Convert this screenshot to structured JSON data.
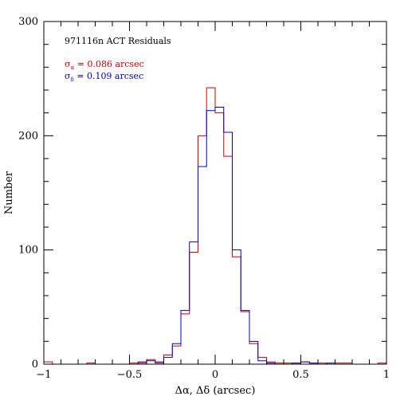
{
  "chart_data": {
    "type": "histogram",
    "title": "971116n ACT Residuals",
    "xlabel": "Δα, Δδ (arcsec)",
    "ylabel": "Number",
    "xlim": [
      -1,
      1
    ],
    "ylim": [
      0,
      300
    ],
    "x_ticks": [
      -1,
      -0.5,
      0,
      0.5,
      1
    ],
    "x_tick_labels": [
      "−1",
      "−0.5",
      "0",
      "0.5",
      "1"
    ],
    "y_ticks": [
      0,
      100,
      200,
      300
    ],
    "y_tick_labels": [
      "0",
      "100",
      "200",
      "300"
    ],
    "bin_width": 0.05,
    "bin_starts": [
      -1.0,
      -0.95,
      -0.9,
      -0.85,
      -0.8,
      -0.75,
      -0.7,
      -0.65,
      -0.6,
      -0.55,
      -0.5,
      -0.45,
      -0.4,
      -0.35,
      -0.3,
      -0.25,
      -0.2,
      -0.15,
      -0.1,
      -0.05,
      0.0,
      0.05,
      0.1,
      0.15,
      0.2,
      0.25,
      0.3,
      0.35,
      0.4,
      0.45,
      0.5,
      0.55,
      0.6,
      0.65,
      0.7,
      0.75,
      0.8,
      0.85,
      0.9,
      0.95
    ],
    "series": [
      {
        "name": "σα",
        "color": "#d00000",
        "values": [
          2,
          0,
          0,
          0,
          0,
          1,
          0,
          0,
          0,
          0,
          1,
          1,
          4,
          1,
          8,
          16,
          44,
          98,
          200,
          242,
          220,
          182,
          94,
          46,
          18,
          6,
          2,
          1,
          1,
          1,
          2,
          1,
          1,
          0,
          1,
          1,
          0,
          0,
          0,
          1
        ]
      },
      {
        "name": "σδ",
        "color": "#0000cc",
        "values": [
          0,
          0,
          0,
          0,
          0,
          0,
          0,
          0,
          0,
          0,
          0,
          2,
          3,
          2,
          6,
          18,
          47,
          107,
          173,
          222,
          225,
          203,
          100,
          47,
          20,
          3,
          1,
          0,
          0,
          1,
          2,
          1,
          0,
          1,
          0,
          0,
          0,
          0,
          0,
          0
        ]
      }
    ],
    "annotations": [
      {
        "symbol": "σ",
        "sub": "α",
        "text": " = 0.086 arcsec",
        "color": "#d00000"
      },
      {
        "symbol": "σ",
        "sub": "δ",
        "text": " = 0.109 arcsec",
        "color": "#0000cc"
      }
    ],
    "grid": false
  }
}
